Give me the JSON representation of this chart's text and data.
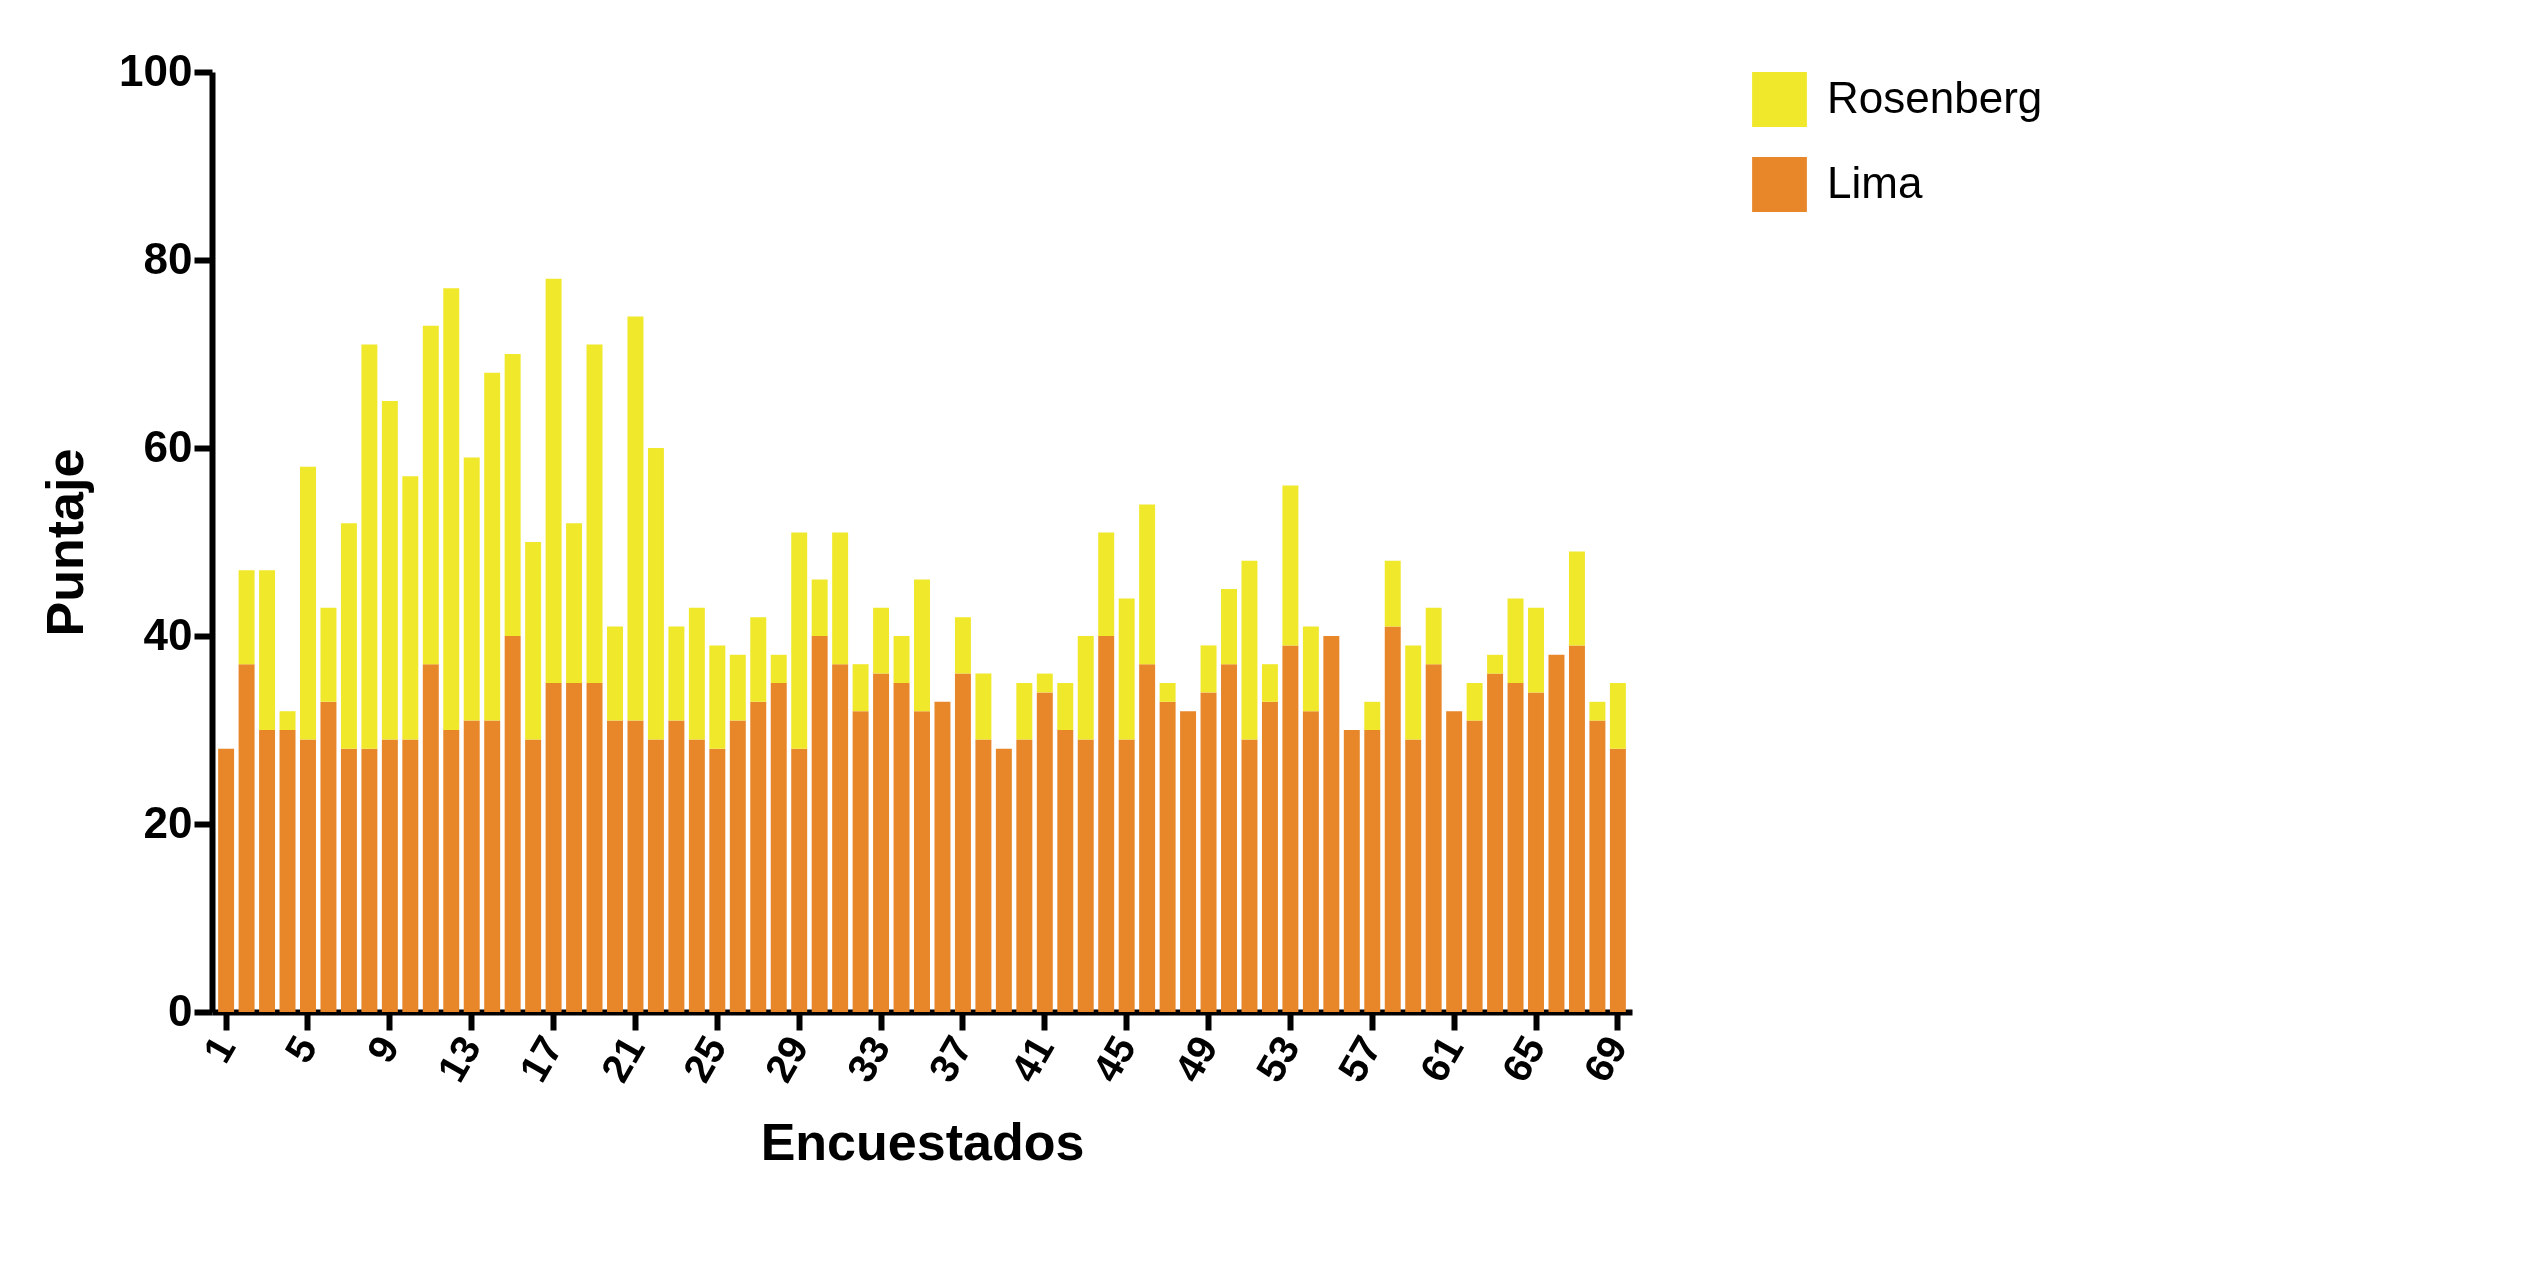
{
  "chart_data": {
    "type": "bar",
    "stacked": true,
    "xlabel": "Encuestados",
    "ylabel": "Puntaje",
    "categories": [
      "1",
      null,
      null,
      null,
      "5",
      null,
      null,
      null,
      "9",
      null,
      null,
      null,
      "13",
      null,
      null,
      null,
      "17",
      null,
      null,
      null,
      "21",
      null,
      null,
      null,
      "25",
      null,
      null,
      null,
      "29",
      null,
      null,
      null,
      "33",
      null,
      null,
      null,
      "37",
      null,
      null,
      null,
      "41",
      null,
      null,
      null,
      "45",
      null,
      null,
      null,
      "49",
      null,
      null,
      null,
      "53",
      null,
      null,
      null,
      "57",
      null,
      null,
      null,
      "61",
      null,
      null,
      null,
      "65",
      null,
      null,
      null,
      "69"
    ],
    "series": [
      {
        "name": "Lima",
        "color": "#e8862a",
        "values": [
          28,
          37,
          30,
          30,
          29,
          33,
          28,
          28,
          29,
          29,
          37,
          30,
          31,
          31,
          40,
          29,
          35,
          35,
          35,
          31,
          31,
          29,
          31,
          29,
          28,
          31,
          33,
          35,
          28,
          40,
          37,
          32,
          36,
          35,
          32,
          33,
          36,
          29,
          28,
          29,
          34,
          30,
          29,
          40,
          29,
          37,
          33,
          32,
          34,
          37,
          29,
          33,
          39,
          32,
          40,
          30,
          30,
          41,
          29,
          37,
          32,
          31,
          36,
          35,
          34,
          38,
          39,
          31,
          28
        ]
      },
      {
        "name": "Rosenberg",
        "color": "#f0e82a",
        "values": [
          0,
          10,
          17,
          2,
          29,
          10,
          24,
          43,
          36,
          28,
          36,
          47,
          28,
          37,
          30,
          21,
          43,
          17,
          36,
          10,
          43,
          31,
          10,
          14,
          11,
          7,
          9,
          3,
          23,
          6,
          14,
          5,
          7,
          5,
          14,
          0,
          6,
          7,
          0,
          6,
          2,
          5,
          11,
          11,
          15,
          17,
          2,
          0,
          5,
          8,
          19,
          4,
          17,
          9,
          0,
          0,
          3,
          7,
          10,
          6,
          0,
          4,
          2,
          9,
          9,
          0,
          10,
          2,
          7
        ]
      }
    ],
    "ylim": [
      0,
      100
    ],
    "yticks": [
      0,
      20,
      40,
      60,
      80,
      100
    ],
    "grid": false,
    "legend": "top right"
  }
}
